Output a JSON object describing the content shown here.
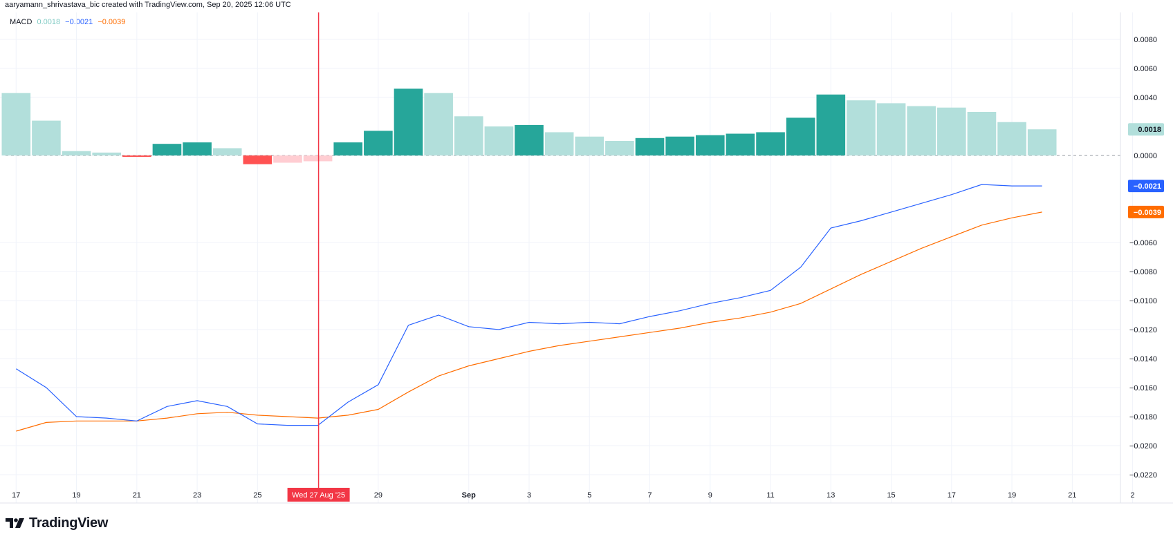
{
  "header": {
    "credit": "aaryamann_shrivastava_bic created with TradingView.com, Sep 20, 2025 12:06 UTC"
  },
  "legend": {
    "name": "MACD",
    "hist": "0.0018",
    "macd": "−0.0021",
    "signal": "−0.0039"
  },
  "brand": {
    "name": "TradingView",
    "icon": "tradingview-logo-icon"
  },
  "colors": {
    "hist_up_strong": "#26a69a",
    "hist_up_weak": "#b2dfdb",
    "hist_down_strong": "#ff5252",
    "hist_down_weak": "#ffcdd2",
    "macd_line": "#2962ff",
    "signal_line": "#ff6d00",
    "crosshair": "#f23645"
  },
  "crosshair": {
    "label": "Wed 27 Aug '25",
    "day_index": 10
  },
  "chart_data": {
    "type": "bar+line",
    "x_start": "2025-08-17",
    "x": [
      "2025-08-17",
      "2025-08-18",
      "2025-08-19",
      "2025-08-20",
      "2025-08-21",
      "2025-08-22",
      "2025-08-23",
      "2025-08-24",
      "2025-08-25",
      "2025-08-26",
      "2025-08-27",
      "2025-08-28",
      "2025-08-29",
      "2025-08-30",
      "2025-08-31",
      "2025-09-01",
      "2025-09-02",
      "2025-09-03",
      "2025-09-04",
      "2025-09-05",
      "2025-09-06",
      "2025-09-07",
      "2025-09-08",
      "2025-09-09",
      "2025-09-10",
      "2025-09-11",
      "2025-09-12",
      "2025-09-13",
      "2025-09-14",
      "2025-09-15",
      "2025-09-16",
      "2025-09-17",
      "2025-09-18",
      "2025-09-19",
      "2025-09-20"
    ],
    "x_ticks": [
      {
        "label": "17",
        "i": 0
      },
      {
        "label": "19",
        "i": 2
      },
      {
        "label": "21",
        "i": 4
      },
      {
        "label": "23",
        "i": 6
      },
      {
        "label": "25",
        "i": 8
      },
      {
        "label": "29",
        "i": 12
      },
      {
        "label": "Sep",
        "i": 15
      },
      {
        "label": "3",
        "i": 17
      },
      {
        "label": "5",
        "i": 19
      },
      {
        "label": "7",
        "i": 21
      },
      {
        "label": "9",
        "i": 23
      },
      {
        "label": "11",
        "i": 25
      },
      {
        "label": "13",
        "i": 27
      },
      {
        "label": "15",
        "i": 29
      },
      {
        "label": "17",
        "i": 31
      },
      {
        "label": "19",
        "i": 33
      },
      {
        "label": "21",
        "i": 35
      },
      {
        "label": "2",
        "i": 37
      }
    ],
    "y_ticks": [
      0.008,
      0.006,
      0.004,
      0.0,
      -0.006,
      -0.008,
      -0.01,
      -0.012,
      -0.014,
      -0.016,
      -0.018,
      -0.02,
      -0.022
    ],
    "y_tick_labels": [
      "0.0080",
      "0.0060",
      "0.0040",
      "0.0000",
      "−0.0060",
      "−0.0080",
      "−0.0100",
      "−0.0120",
      "−0.0140",
      "−0.0160",
      "−0.0180",
      "−0.0200",
      "−0.0220"
    ],
    "ylim": [
      -0.0232,
      0.0098
    ],
    "series": [
      {
        "name": "Histogram",
        "type": "bar",
        "values": [
          0.0043,
          0.0024,
          0.0003,
          0.0002,
          -0.0001,
          0.0008,
          0.0009,
          0.0005,
          -0.0006,
          -0.0005,
          -0.0004,
          0.0009,
          0.0017,
          0.0046,
          0.0043,
          0.0027,
          0.002,
          0.0021,
          0.0016,
          0.0013,
          0.001,
          0.0012,
          0.0013,
          0.0014,
          0.0015,
          0.0016,
          0.0026,
          0.0042,
          0.0038,
          0.0036,
          0.0034,
          0.0033,
          0.003,
          0.0023,
          0.0018
        ]
      },
      {
        "name": "MACD",
        "type": "line",
        "values": [
          -0.0147,
          -0.016,
          -0.018,
          -0.0181,
          -0.0183,
          -0.0173,
          -0.0169,
          -0.0173,
          -0.0185,
          -0.0186,
          -0.0186,
          -0.017,
          -0.0158,
          -0.0117,
          -0.011,
          -0.0118,
          -0.012,
          -0.0115,
          -0.0116,
          -0.0115,
          -0.0116,
          -0.0111,
          -0.0107,
          -0.0102,
          -0.0098,
          -0.0093,
          -0.0077,
          -0.005,
          -0.0045,
          -0.0039,
          -0.0033,
          -0.0027,
          -0.002,
          -0.0021,
          -0.0021
        ]
      },
      {
        "name": "Signal",
        "type": "line",
        "values": [
          -0.019,
          -0.0184,
          -0.0183,
          -0.0183,
          -0.0183,
          -0.0181,
          -0.0178,
          -0.0177,
          -0.0179,
          -0.018,
          -0.0181,
          -0.0179,
          -0.0175,
          -0.0163,
          -0.0152,
          -0.0145,
          -0.014,
          -0.0135,
          -0.0131,
          -0.0128,
          -0.0125,
          -0.0122,
          -0.0119,
          -0.0115,
          -0.0112,
          -0.0108,
          -0.0102,
          -0.0092,
          -0.0082,
          -0.0073,
          -0.0064,
          -0.0056,
          -0.0048,
          -0.0043,
          -0.0039
        ]
      }
    ],
    "last_value_badges": [
      "0.0018",
      "−0.0021",
      "−0.0039"
    ],
    "grid": true,
    "zero_line": "dashed"
  }
}
